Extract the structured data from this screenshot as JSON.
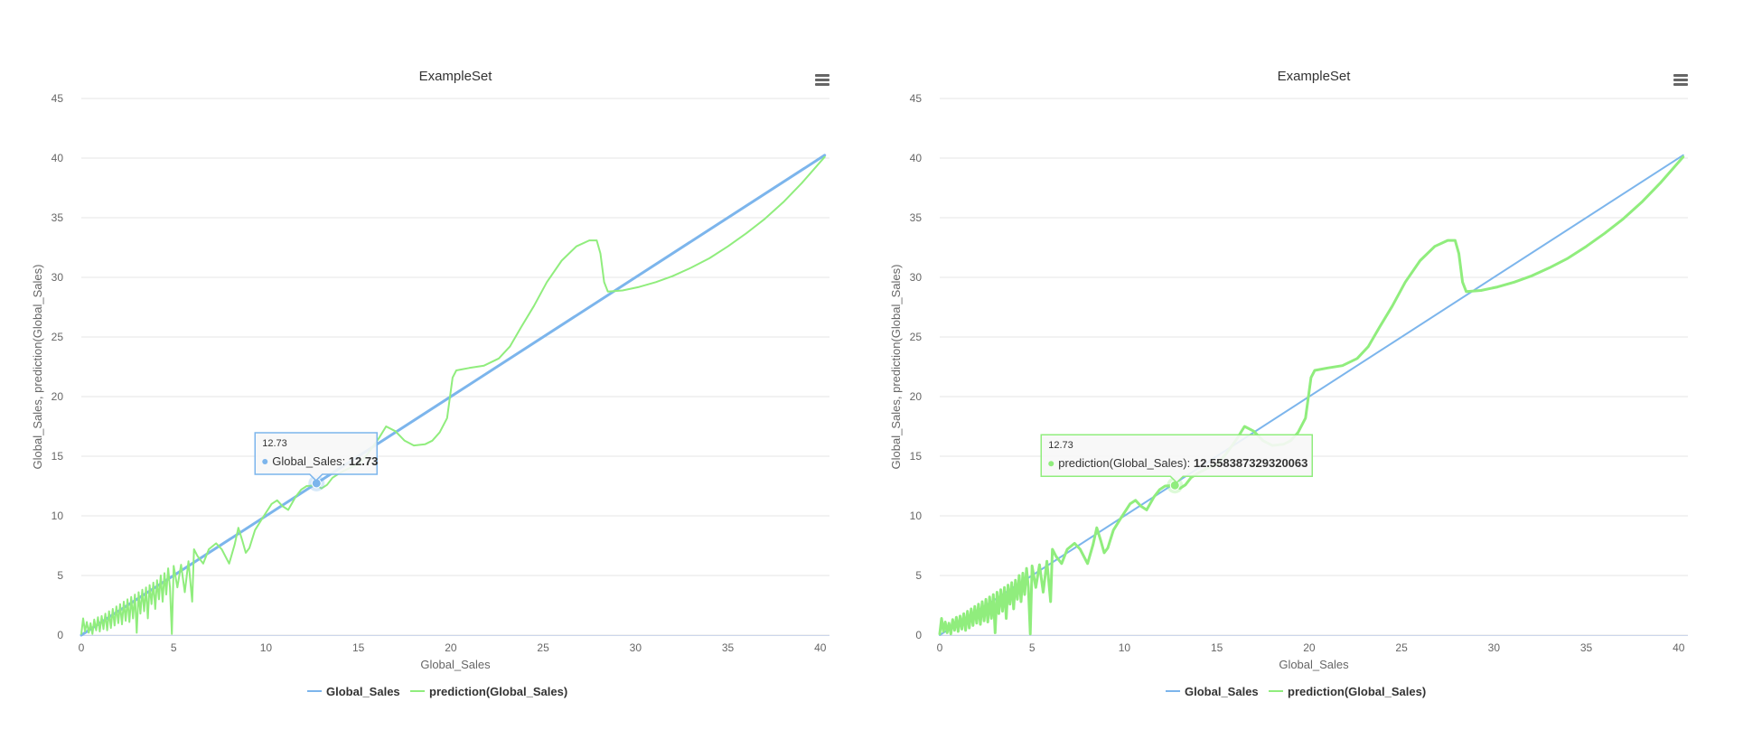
{
  "chart_data": [
    {
      "type": "line",
      "title": "ExampleSet",
      "xlabel": "Global_Sales",
      "ylabel": "Global_Sales, prediction(Global_Sales)",
      "xlim": [
        0,
        40.5
      ],
      "ylim": [
        0,
        45
      ],
      "x_ticks": [
        0,
        5,
        10,
        15,
        20,
        25,
        30,
        35,
        40
      ],
      "y_ticks": [
        0,
        5,
        10,
        15,
        20,
        25,
        30,
        35,
        40,
        45
      ],
      "grid": true,
      "legend_position": "bottom-center",
      "menu_icon": "hamburger-menu-icon",
      "series": [
        {
          "name": "Global_Sales",
          "color": "#7cb5ec",
          "points": [
            [
              0,
              0
            ],
            [
              40.24,
              40.24
            ]
          ]
        },
        {
          "name": "prediction(Global_Sales)",
          "color": "#90ed7d",
          "points": [
            [
              0,
              0.1
            ],
            [
              0.1,
              1.4
            ],
            [
              0.2,
              0.3
            ],
            [
              0.3,
              1.1
            ],
            [
              0.4,
              0.2
            ],
            [
              0.5,
              1.0
            ],
            [
              0.6,
              0.1
            ],
            [
              0.7,
              1.3
            ],
            [
              0.8,
              0.4
            ],
            [
              0.9,
              1.5
            ],
            [
              1.0,
              0.3
            ],
            [
              1.1,
              1.6
            ],
            [
              1.2,
              0.5
            ],
            [
              1.3,
              1.8
            ],
            [
              1.4,
              0.4
            ],
            [
              1.5,
              2.0
            ],
            [
              1.6,
              0.6
            ],
            [
              1.7,
              2.2
            ],
            [
              1.8,
              0.8
            ],
            [
              1.9,
              2.4
            ],
            [
              2.0,
              1.0
            ],
            [
              2.1,
              2.6
            ],
            [
              2.2,
              0.9
            ],
            [
              2.3,
              2.8
            ],
            [
              2.4,
              1.2
            ],
            [
              2.5,
              3.0
            ],
            [
              2.6,
              1.1
            ],
            [
              2.7,
              3.2
            ],
            [
              2.8,
              1.4
            ],
            [
              2.9,
              3.4
            ],
            [
              3.0,
              0.2
            ],
            [
              3.1,
              3.6
            ],
            [
              3.2,
              1.8
            ],
            [
              3.3,
              3.8
            ],
            [
              3.4,
              2.0
            ],
            [
              3.5,
              4.0
            ],
            [
              3.6,
              1.4
            ],
            [
              3.7,
              4.2
            ],
            [
              3.8,
              2.6
            ],
            [
              3.9,
              4.4
            ],
            [
              4.0,
              2.2
            ],
            [
              4.1,
              4.6
            ],
            [
              4.2,
              3.0
            ],
            [
              4.3,
              5.0
            ],
            [
              4.4,
              2.8
            ],
            [
              4.5,
              5.2
            ],
            [
              4.6,
              3.4
            ],
            [
              4.7,
              5.6
            ],
            [
              4.8,
              4.0
            ],
            [
              4.9,
              0.1
            ],
            [
              5.0,
              5.8
            ],
            [
              5.2,
              4.0
            ],
            [
              5.4,
              5.9
            ],
            [
              5.6,
              3.6
            ],
            [
              5.8,
              6.2
            ],
            [
              6.0,
              2.8
            ],
            [
              6.1,
              7.2
            ],
            [
              6.3,
              6.6
            ],
            [
              6.6,
              6.0
            ],
            [
              6.9,
              7.2
            ],
            [
              7.3,
              7.7
            ],
            [
              7.6,
              7.2
            ],
            [
              8.0,
              6.0
            ],
            [
              8.3,
              7.6
            ],
            [
              8.5,
              9.0
            ],
            [
              8.7,
              8.0
            ],
            [
              8.9,
              6.9
            ],
            [
              9.1,
              7.3
            ],
            [
              9.4,
              8.8
            ],
            [
              9.8,
              9.8
            ],
            [
              10.3,
              11.0
            ],
            [
              10.6,
              11.3
            ],
            [
              10.9,
              10.8
            ],
            [
              11.2,
              10.5
            ],
            [
              11.6,
              11.6
            ],
            [
              11.9,
              12.2
            ],
            [
              12.2,
              12.5
            ],
            [
              12.73,
              12.56
            ],
            [
              13.0,
              12.3
            ],
            [
              13.3,
              12.6
            ],
            [
              13.6,
              13.2
            ],
            [
              14.0,
              13.6
            ],
            [
              14.5,
              14.0
            ],
            [
              15.0,
              14.3
            ],
            [
              15.5,
              15.2
            ],
            [
              16.1,
              16.5
            ],
            [
              16.5,
              17.5
            ],
            [
              17.0,
              17.1
            ],
            [
              17.5,
              16.3
            ],
            [
              18.0,
              15.9
            ],
            [
              18.6,
              16.0
            ],
            [
              19.0,
              16.3
            ],
            [
              19.4,
              17.0
            ],
            [
              19.8,
              18.2
            ],
            [
              20.1,
              21.6
            ],
            [
              20.3,
              22.2
            ],
            [
              21.0,
              22.4
            ],
            [
              21.8,
              22.6
            ],
            [
              22.6,
              23.2
            ],
            [
              23.2,
              24.2
            ],
            [
              23.8,
              25.8
            ],
            [
              24.5,
              27.6
            ],
            [
              25.2,
              29.6
            ],
            [
              26.0,
              31.4
            ],
            [
              26.8,
              32.6
            ],
            [
              27.5,
              33.1
            ],
            [
              27.9,
              33.1
            ],
            [
              28.1,
              32.0
            ],
            [
              28.3,
              29.6
            ],
            [
              28.5,
              28.8
            ],
            [
              29.3,
              28.9
            ],
            [
              30.2,
              29.2
            ],
            [
              31.1,
              29.6
            ],
            [
              32.0,
              30.1
            ],
            [
              33.0,
              30.8
            ],
            [
              34.0,
              31.6
            ],
            [
              35.0,
              32.6
            ],
            [
              36.0,
              33.7
            ],
            [
              37.0,
              34.9
            ],
            [
              38.0,
              36.3
            ],
            [
              39.0,
              37.9
            ],
            [
              40.24,
              40.1
            ]
          ]
        }
      ],
      "tooltip": {
        "header": "12.73",
        "series_name": "Global_Sales",
        "value": "12.73",
        "x": 12.73,
        "y": 12.73
      }
    },
    {
      "type": "line",
      "title": "ExampleSet",
      "xlabel": "Global_Sales",
      "ylabel": "Global_Sales, prediction(Global_Sales)",
      "xlim": [
        0,
        40.5
      ],
      "ylim": [
        0,
        45
      ],
      "x_ticks": [
        0,
        5,
        10,
        15,
        20,
        25,
        30,
        35,
        40
      ],
      "y_ticks": [
        0,
        5,
        10,
        15,
        20,
        25,
        30,
        35,
        40,
        45
      ],
      "grid": true,
      "legend_position": "bottom-center",
      "menu_icon": "hamburger-menu-icon",
      "series": [
        {
          "name": "Global_Sales",
          "color": "#7cb5ec",
          "points": [
            [
              0,
              0
            ],
            [
              40.24,
              40.24
            ]
          ]
        },
        {
          "name": "prediction(Global_Sales)",
          "color": "#90ed7d",
          "points": [
            [
              0,
              0.1
            ],
            [
              0.1,
              1.4
            ],
            [
              0.2,
              0.3
            ],
            [
              0.3,
              1.1
            ],
            [
              0.4,
              0.2
            ],
            [
              0.5,
              1.0
            ],
            [
              0.6,
              0.1
            ],
            [
              0.7,
              1.3
            ],
            [
              0.8,
              0.4
            ],
            [
              0.9,
              1.5
            ],
            [
              1.0,
              0.3
            ],
            [
              1.1,
              1.6
            ],
            [
              1.2,
              0.5
            ],
            [
              1.3,
              1.8
            ],
            [
              1.4,
              0.4
            ],
            [
              1.5,
              2.0
            ],
            [
              1.6,
              0.6
            ],
            [
              1.7,
              2.2
            ],
            [
              1.8,
              0.8
            ],
            [
              1.9,
              2.4
            ],
            [
              2.0,
              1.0
            ],
            [
              2.1,
              2.6
            ],
            [
              2.2,
              0.9
            ],
            [
              2.3,
              2.8
            ],
            [
              2.4,
              1.2
            ],
            [
              2.5,
              3.0
            ],
            [
              2.6,
              1.1
            ],
            [
              2.7,
              3.2
            ],
            [
              2.8,
              1.4
            ],
            [
              2.9,
              3.4
            ],
            [
              3.0,
              0.2
            ],
            [
              3.1,
              3.6
            ],
            [
              3.2,
              1.8
            ],
            [
              3.3,
              3.8
            ],
            [
              3.4,
              2.0
            ],
            [
              3.5,
              4.0
            ],
            [
              3.6,
              1.4
            ],
            [
              3.7,
              4.2
            ],
            [
              3.8,
              2.6
            ],
            [
              3.9,
              4.4
            ],
            [
              4.0,
              2.2
            ],
            [
              4.1,
              4.6
            ],
            [
              4.2,
              3.0
            ],
            [
              4.3,
              5.0
            ],
            [
              4.4,
              2.8
            ],
            [
              4.5,
              5.2
            ],
            [
              4.6,
              3.4
            ],
            [
              4.7,
              5.6
            ],
            [
              4.8,
              4.0
            ],
            [
              4.9,
              0.1
            ],
            [
              5.0,
              5.8
            ],
            [
              5.2,
              4.0
            ],
            [
              5.4,
              5.9
            ],
            [
              5.6,
              3.6
            ],
            [
              5.8,
              6.2
            ],
            [
              6.0,
              2.8
            ],
            [
              6.1,
              7.2
            ],
            [
              6.3,
              6.6
            ],
            [
              6.6,
              6.0
            ],
            [
              6.9,
              7.2
            ],
            [
              7.3,
              7.7
            ],
            [
              7.6,
              7.2
            ],
            [
              8.0,
              6.0
            ],
            [
              8.3,
              7.6
            ],
            [
              8.5,
              9.0
            ],
            [
              8.7,
              8.0
            ],
            [
              8.9,
              6.9
            ],
            [
              9.1,
              7.3
            ],
            [
              9.4,
              8.8
            ],
            [
              9.8,
              9.8
            ],
            [
              10.3,
              11.0
            ],
            [
              10.6,
              11.3
            ],
            [
              10.9,
              10.8
            ],
            [
              11.2,
              10.5
            ],
            [
              11.6,
              11.6
            ],
            [
              11.9,
              12.2
            ],
            [
              12.2,
              12.5
            ],
            [
              12.73,
              12.56
            ],
            [
              13.0,
              12.3
            ],
            [
              13.3,
              12.6
            ],
            [
              13.6,
              13.2
            ],
            [
              14.0,
              13.6
            ],
            [
              14.5,
              14.0
            ],
            [
              15.0,
              14.3
            ],
            [
              15.5,
              15.2
            ],
            [
              16.1,
              16.5
            ],
            [
              16.5,
              17.5
            ],
            [
              17.0,
              17.1
            ],
            [
              17.5,
              16.3
            ],
            [
              18.0,
              15.9
            ],
            [
              18.6,
              16.0
            ],
            [
              19.0,
              16.3
            ],
            [
              19.4,
              17.0
            ],
            [
              19.8,
              18.2
            ],
            [
              20.1,
              21.6
            ],
            [
              20.3,
              22.2
            ],
            [
              21.0,
              22.4
            ],
            [
              21.8,
              22.6
            ],
            [
              22.6,
              23.2
            ],
            [
              23.2,
              24.2
            ],
            [
              23.8,
              25.8
            ],
            [
              24.5,
              27.6
            ],
            [
              25.2,
              29.6
            ],
            [
              26.0,
              31.4
            ],
            [
              26.8,
              32.6
            ],
            [
              27.5,
              33.1
            ],
            [
              27.9,
              33.1
            ],
            [
              28.1,
              32.0
            ],
            [
              28.3,
              29.6
            ],
            [
              28.5,
              28.8
            ],
            [
              29.3,
              28.9
            ],
            [
              30.2,
              29.2
            ],
            [
              31.1,
              29.6
            ],
            [
              32.0,
              30.1
            ],
            [
              33.0,
              30.8
            ],
            [
              34.0,
              31.6
            ],
            [
              35.0,
              32.6
            ],
            [
              36.0,
              33.7
            ],
            [
              37.0,
              34.9
            ],
            [
              38.0,
              36.3
            ],
            [
              39.0,
              37.9
            ],
            [
              40.24,
              40.1
            ]
          ]
        }
      ],
      "tooltip": {
        "header": "12.73",
        "series_name": "prediction(Global_Sales)",
        "value": "12.558387329320063",
        "x": 12.73,
        "y": 12.56
      }
    }
  ]
}
